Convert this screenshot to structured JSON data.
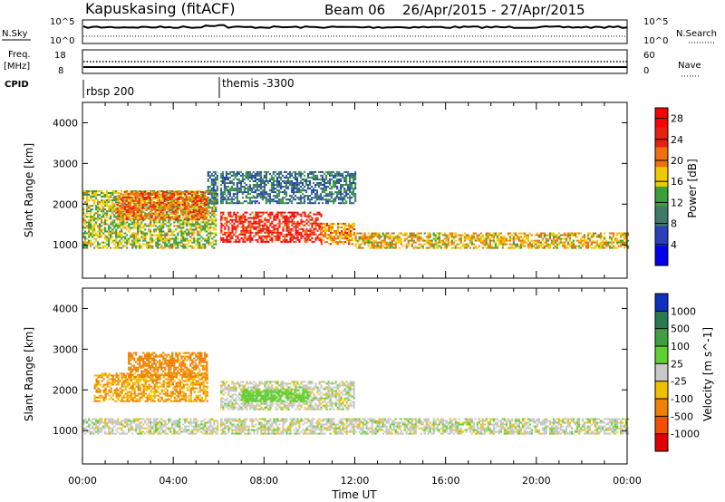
{
  "header": {
    "station": "Kapuskasing (fitACF)",
    "beam": "Beam 06",
    "date_range": "26/Apr/2015 - 27/Apr/2015"
  },
  "noise_panel": {
    "left_label": "N.Sky",
    "right_label": "N.Search",
    "left_ticks": [
      "10^5",
      "10^0"
    ],
    "right_ticks": [
      "10^5",
      "10^0"
    ]
  },
  "freq_panel": {
    "left_label_line1": "Freq.",
    "left_label_line2": "[MHz]",
    "right_label": "Nave",
    "left_ticks": [
      "18",
      "8"
    ],
    "right_ticks": [
      "60",
      "0"
    ]
  },
  "cpid": {
    "label": "CPID",
    "programs": [
      {
        "name": "rbsp 200",
        "start_hour": 0
      },
      {
        "name": "themis -3300",
        "start_hour": 6
      }
    ]
  },
  "chart_data": [
    {
      "type": "heatmap",
      "title": "",
      "xlabel": "Time UT",
      "ylabel": "Slant Range [km]",
      "x_ticks": [
        "00:00",
        "04:00",
        "08:00",
        "12:00",
        "16:00",
        "20:00",
        "00:00"
      ],
      "xlim_hours": [
        0,
        24
      ],
      "y_ticks": [
        1000,
        2000,
        3000,
        4000
      ],
      "ylim_km": [
        180,
        4500
      ],
      "colorbar": {
        "label": "Power [dB]",
        "ticks": [
          4,
          8,
          12,
          16,
          20,
          24,
          28
        ],
        "range": [
          0,
          30
        ],
        "colors": [
          "#0000ee",
          "#2a40b8",
          "#3e7a6a",
          "#3aa03a",
          "#f0c800",
          "#f07010",
          "#e82010",
          "#ff0000"
        ]
      },
      "echo_bands": [
        {
          "t_start": 0,
          "t_end": 5.9,
          "range_min_km": 900,
          "range_max_km": 2300,
          "power_db": 15
        },
        {
          "t_start": 1.5,
          "t_end": 5.5,
          "range_min_km": 1600,
          "range_max_km": 2300,
          "power_db": 22
        },
        {
          "t_start": 6,
          "t_end": 10.5,
          "range_min_km": 1050,
          "range_max_km": 1800,
          "power_db": 26
        },
        {
          "t_start": 10.5,
          "t_end": 12,
          "range_min_km": 1000,
          "range_max_km": 1500,
          "power_db": 20
        },
        {
          "t_start": 12,
          "t_end": 24,
          "range_min_km": 900,
          "range_max_km": 1300,
          "power_db": 18
        },
        {
          "t_start": 5.5,
          "t_end": 12,
          "range_min_km": 2000,
          "range_max_km": 2800,
          "power_db": 8
        }
      ]
    },
    {
      "type": "heatmap",
      "title": "",
      "xlabel": "Time UT",
      "ylabel": "Slant Range [km]",
      "x_ticks": [
        "00:00",
        "04:00",
        "08:00",
        "12:00",
        "16:00",
        "20:00",
        "00:00"
      ],
      "xlim_hours": [
        0,
        24
      ],
      "y_ticks": [
        1000,
        2000,
        3000,
        4000
      ],
      "ylim_km": [
        180,
        4500
      ],
      "colorbar": {
        "label": "Velocity [m s^-1]",
        "ticks": [
          1000,
          500,
          100,
          25,
          -25,
          -100,
          -500,
          -1000
        ],
        "colors": [
          "#1030c0",
          "#2a7a50",
          "#40a040",
          "#60d030",
          "#c8c8c8",
          "#f0c000",
          "#f08000",
          "#f05000",
          "#e00000"
        ]
      },
      "echo_bands": [
        {
          "t_start": 0,
          "t_end": 24,
          "range_min_km": 900,
          "range_max_km": 1300,
          "velocity": 0
        },
        {
          "t_start": 0.5,
          "t_end": 5.5,
          "range_min_km": 1700,
          "range_max_km": 2400,
          "velocity": -150
        },
        {
          "t_start": 2,
          "t_end": 5.5,
          "range_min_km": 2300,
          "range_max_km": 2900,
          "velocity": -200
        },
        {
          "t_start": 6,
          "t_end": 12,
          "range_min_km": 1500,
          "range_max_km": 2200,
          "velocity": 0
        },
        {
          "t_start": 7,
          "t_end": 10,
          "range_min_km": 1700,
          "range_max_km": 2000,
          "velocity": 150
        }
      ]
    }
  ]
}
